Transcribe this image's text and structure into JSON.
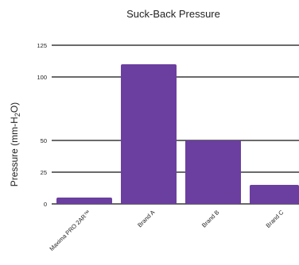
{
  "chart_data": {
    "type": "bar",
    "title": "Suck-Back Pressure",
    "ylabel_main": "Pressure (mm-H",
    "ylabel_sub": "2",
    "ylabel_end": "O)",
    "xlabel": "",
    "categories": [
      "Maxima PRO 2AR™",
      "Brand A",
      "Brand B",
      "Brand C"
    ],
    "values": [
      5,
      110,
      50,
      15
    ],
    "yticks": [
      0,
      25,
      50,
      100,
      125
    ],
    "ylim": [
      0,
      125
    ],
    "grid": true,
    "bar_color": "#6b3fa0",
    "grid_color": "#111111"
  }
}
